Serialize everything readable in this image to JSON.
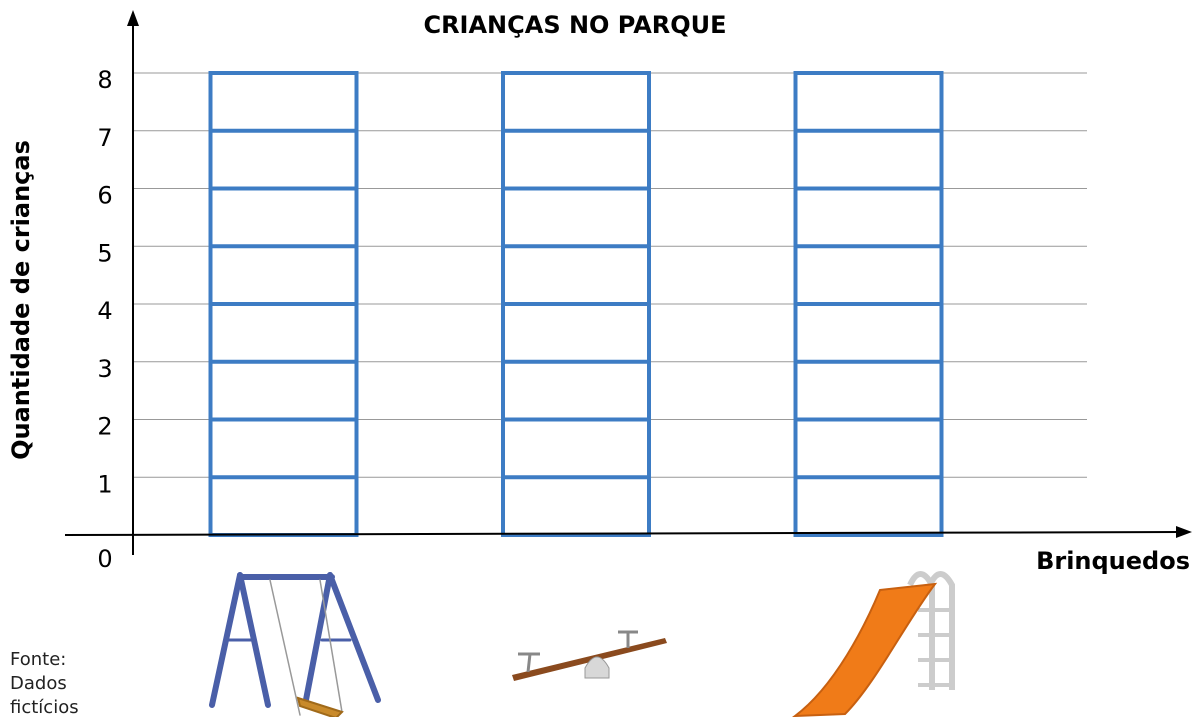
{
  "chart_data": {
    "type": "bar",
    "title": "CRIANÇAS NO PARQUE",
    "y_label": "Quantidade de crianças",
    "x_label": "Brinquedos",
    "source": "Fonte: Dados fictícios",
    "categories": [
      null,
      null,
      null
    ],
    "ylim": [
      0,
      8
    ],
    "yticks": [
      0,
      1,
      2,
      3,
      4,
      5,
      6,
      7,
      8
    ],
    "grid": true,
    "color": "#3d7cc4"
  }
}
